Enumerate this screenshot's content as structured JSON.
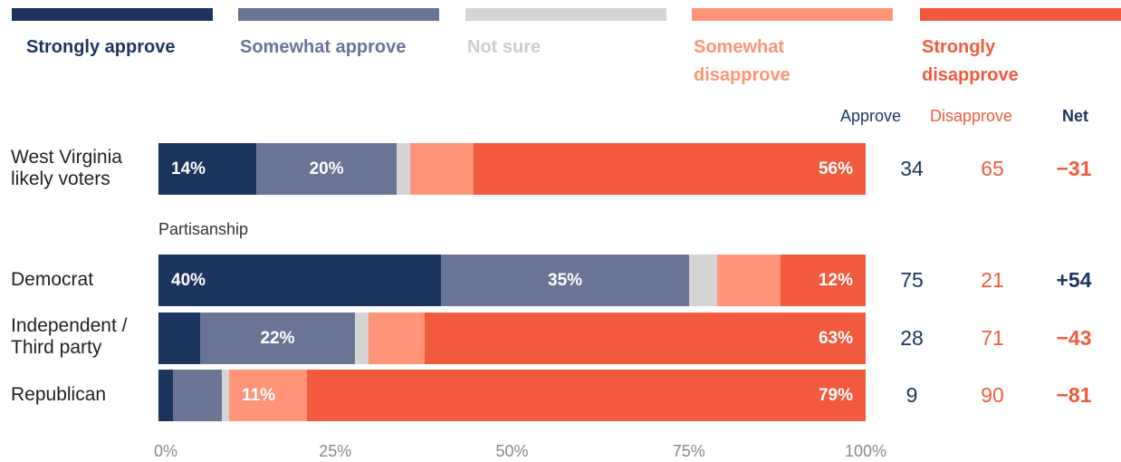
{
  "colors": {
    "strongly_approve": "#1c355e",
    "somewhat_approve": "#6a7494",
    "not_sure": "#d4d4d4",
    "somewhat_disapprove": "#ff9478",
    "strongly_disapprove": "#f15a3d",
    "approve_text": "#1c355e",
    "disapprove_text": "#f15a3d"
  },
  "chart_data": {
    "type": "bar",
    "orientation": "horizontal",
    "stacked": true,
    "xlim": [
      0,
      100
    ],
    "xticks": [
      "0%",
      "25%",
      "50%",
      "75%",
      "100%"
    ],
    "legend": {
      "placement": "top",
      "entries": [
        "Strongly approve",
        "Somewhat approve",
        "Not sure",
        "Somewhat disapprove",
        "Strongly disapprove"
      ]
    },
    "group_label": "Partisanship",
    "column_headers": {
      "approve": "Approve",
      "disapprove": "Disapprove",
      "net": "Net"
    },
    "categories": [
      "West Virginia likely voters",
      "Democrat",
      "Independent / Third party",
      "Republican"
    ],
    "series": [
      {
        "name": "Strongly approve",
        "values": [
          14,
          40,
          6,
          2
        ],
        "labels": [
          "14%",
          "40%",
          "",
          ""
        ]
      },
      {
        "name": "Somewhat approve",
        "values": [
          20,
          35,
          22,
          7
        ],
        "labels": [
          "20%",
          "35%",
          "22%",
          ""
        ]
      },
      {
        "name": "Not sure",
        "values": [
          2,
          4,
          2,
          1
        ],
        "labels": [
          "",
          "",
          "",
          ""
        ]
      },
      {
        "name": "Somewhat disapprove",
        "values": [
          9,
          9,
          8,
          11
        ],
        "labels": [
          "",
          "",
          "",
          "11%"
        ]
      },
      {
        "name": "Strongly disapprove",
        "values": [
          56,
          12,
          63,
          79
        ],
        "labels": [
          "56%",
          "12%",
          "63%",
          "79%"
        ]
      }
    ],
    "approve": [
      "34",
      "75",
      "28",
      "9"
    ],
    "disapprove": [
      "65",
      "21",
      "71",
      "90"
    ],
    "net": [
      "−31",
      "+54",
      "−43",
      "−81"
    ]
  }
}
